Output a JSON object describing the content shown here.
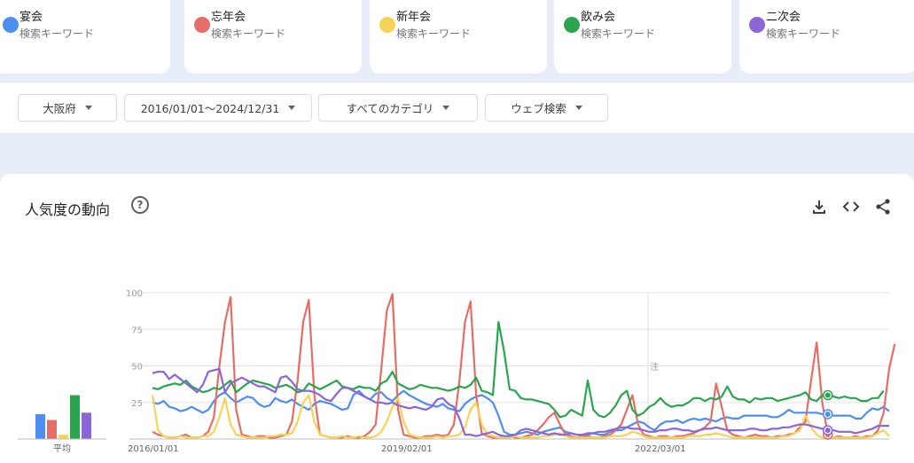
{
  "terms": [
    {
      "name": "宴会",
      "sub": "検索キーワード",
      "color": "#4e8ef3"
    },
    {
      "name": "忘年会",
      "sub": "検索キーワード",
      "color": "#e66d66"
    },
    {
      "name": "新年会",
      "sub": "検索キーワード",
      "color": "#f6d257"
    },
    {
      "name": "飲み会",
      "sub": "検索キーワード",
      "color": "#2aa44f"
    },
    {
      "name": "二次会",
      "sub": "検索キーワード",
      "color": "#8c65d6"
    }
  ],
  "filters": {
    "region": "大阪府",
    "period": "2016/01/01～2024/12/31",
    "category": "すべてのカテゴリ",
    "search_type": "ウェブ検索"
  },
  "panel": {
    "title": "人気度の動向",
    "help_icon": "help-circle-icon",
    "download_icon": "download-icon",
    "embed_icon": "embed-code-icon",
    "share_icon": "share-icon"
  },
  "chart_data": {
    "type": "line",
    "ylim": [
      0,
      100
    ],
    "y_ticks": [
      25,
      50,
      75,
      100
    ],
    "x_tick_labels": [
      "2016/01/01",
      "2019/02/01",
      "2022/03/01"
    ],
    "note_label": "注",
    "average_label": "平均",
    "averages": [
      {
        "name": "宴会",
        "value": 17
      },
      {
        "name": "忘年会",
        "value": 13
      },
      {
        "name": "新年会",
        "value": 3
      },
      {
        "name": "飲み会",
        "value": 30
      },
      {
        "name": "二次会",
        "value": 18
      }
    ],
    "series": [
      {
        "name": "宴会",
        "color": "#4e8ef3",
        "values": [
          25,
          24,
          26,
          22,
          21,
          19,
          20,
          22,
          20,
          18,
          20,
          26,
          30,
          32,
          28,
          25,
          27,
          29,
          28,
          24,
          22,
          23,
          28,
          26,
          25,
          27,
          24,
          22,
          20,
          24,
          26,
          25,
          24,
          22,
          20,
          21,
          30,
          33,
          29,
          27,
          31,
          32,
          28,
          26,
          30,
          33,
          30,
          28,
          26,
          24,
          23,
          22,
          24,
          21,
          20,
          19,
          24,
          27,
          29,
          30,
          28,
          25,
          16,
          5,
          3,
          3,
          4,
          5,
          4,
          3,
          5,
          6,
          7,
          8,
          5,
          4,
          3,
          3,
          3,
          4,
          3,
          3,
          5,
          6,
          6,
          8,
          10,
          12,
          11,
          8,
          6,
          10,
          12,
          12,
          13,
          11,
          13,
          14,
          13,
          14,
          13,
          12,
          14,
          15,
          14,
          14,
          16,
          16,
          16,
          16,
          16,
          15,
          15,
          17,
          20,
          18,
          18,
          18,
          18,
          18,
          17,
          17,
          16,
          16,
          16,
          16,
          14,
          14,
          18,
          21,
          20,
          22,
          19
        ]
      },
      {
        "name": "忘年会",
        "color": "#e66d66",
        "values": [
          5,
          3,
          2,
          1,
          1,
          2,
          3,
          1,
          1,
          2,
          5,
          15,
          50,
          80,
          97,
          20,
          3,
          2,
          1,
          2,
          2,
          1,
          1,
          2,
          3,
          12,
          40,
          80,
          95,
          30,
          3,
          2,
          1,
          1,
          1,
          2,
          1,
          1,
          2,
          5,
          10,
          48,
          88,
          99,
          20,
          3,
          2,
          1,
          1,
          2,
          2,
          3,
          2,
          3,
          10,
          40,
          80,
          94,
          30,
          4,
          2,
          1,
          1,
          2,
          2,
          1,
          1,
          2,
          3,
          6,
          10,
          15,
          18,
          10,
          3,
          2,
          1,
          2,
          2,
          1,
          1,
          2,
          3,
          6,
          10,
          20,
          30,
          10,
          3,
          2,
          1,
          2,
          2,
          1,
          2,
          2,
          3,
          4,
          6,
          8,
          12,
          38,
          22,
          6,
          3,
          2,
          1,
          2,
          3,
          2,
          2,
          1,
          2,
          2,
          3,
          4,
          8,
          12,
          40,
          66,
          25,
          3,
          1,
          2,
          1,
          1,
          2,
          1,
          2,
          2,
          6,
          18,
          48,
          65
        ]
      },
      {
        "name": "新年会",
        "color": "#f6d257",
        "values": [
          30,
          6,
          2,
          1,
          1,
          2,
          1,
          1,
          1,
          2,
          2,
          5,
          15,
          28,
          10,
          3,
          2,
          1,
          1,
          1,
          1,
          2,
          2,
          3,
          3,
          4,
          12,
          25,
          30,
          12,
          3,
          2,
          1,
          1,
          2,
          1,
          1,
          2,
          1,
          1,
          2,
          5,
          12,
          22,
          28,
          12,
          3,
          2,
          1,
          1,
          1,
          2,
          1,
          2,
          2,
          3,
          8,
          20,
          25,
          10,
          3,
          2,
          1,
          1,
          1,
          2,
          1,
          1,
          1,
          1,
          2,
          2,
          3,
          4,
          2,
          1,
          1,
          1,
          1,
          1,
          1,
          1,
          2,
          2,
          2,
          3,
          5,
          4,
          2,
          1,
          1,
          1,
          1,
          1,
          1,
          1,
          2,
          2,
          2,
          3,
          3,
          4,
          3,
          2,
          1,
          1,
          1,
          1,
          1,
          1,
          1,
          1,
          1,
          2,
          2,
          4,
          6,
          16,
          8,
          3,
          1,
          1,
          1,
          1,
          1,
          1,
          1,
          1,
          1,
          2,
          4,
          6,
          2
        ]
      },
      {
        "name": "飲み会",
        "color": "#2aa44f",
        "values": [
          35,
          34,
          36,
          37,
          38,
          37,
          40,
          36,
          34,
          32,
          33,
          35,
          34,
          37,
          40,
          32,
          35,
          38,
          40,
          39,
          38,
          37,
          35,
          36,
          37,
          35,
          32,
          33,
          38,
          36,
          34,
          36,
          38,
          40,
          36,
          35,
          34,
          36,
          35,
          35,
          33,
          38,
          40,
          46,
          38,
          36,
          34,
          35,
          37,
          36,
          35,
          35,
          34,
          33,
          34,
          36,
          35,
          37,
          42,
          33,
          32,
          30,
          80,
          60,
          34,
          33,
          28,
          27,
          27,
          26,
          25,
          24,
          20,
          15,
          16,
          20,
          18,
          16,
          40,
          20,
          16,
          15,
          18,
          23,
          30,
          33,
          20,
          16,
          18,
          22,
          24,
          28,
          24,
          22,
          23,
          23,
          25,
          28,
          28,
          26,
          28,
          27,
          29,
          36,
          29,
          27,
          27,
          25,
          28,
          27,
          28,
          28,
          26,
          27,
          28,
          29,
          30,
          32,
          27,
          26,
          30,
          30,
          29,
          28,
          29,
          28,
          28,
          26,
          26,
          28,
          28,
          33
        ]
      },
      {
        "name": "二次会",
        "color": "#8c65d6",
        "values": [
          45,
          46,
          46,
          41,
          44,
          41,
          38,
          35,
          32,
          37,
          46,
          47,
          48,
          32,
          38,
          40,
          42,
          40,
          38,
          36,
          36,
          34,
          32,
          42,
          43,
          39,
          34,
          33,
          33,
          32,
          30,
          27,
          26,
          31,
          35,
          35,
          33,
          31,
          29,
          27,
          25,
          25,
          24,
          25,
          23,
          22,
          21,
          22,
          21,
          20,
          22,
          27,
          28,
          24,
          22,
          14,
          3,
          3,
          2,
          3,
          4,
          5,
          3,
          2,
          2,
          3,
          6,
          7,
          6,
          5,
          4,
          3,
          4,
          3,
          3,
          4,
          3,
          3,
          4,
          4,
          5,
          5,
          6,
          7,
          8,
          8,
          7,
          7,
          6,
          5,
          5,
          6,
          6,
          7,
          7,
          6,
          6,
          5,
          6,
          7,
          7,
          8,
          7,
          6,
          6,
          6,
          6,
          7,
          7,
          6,
          6,
          7,
          7,
          8,
          8,
          9,
          10,
          10,
          9,
          8,
          7,
          6,
          6,
          5,
          5,
          5,
          4,
          5,
          6,
          7,
          9,
          9,
          9
        ]
      }
    ]
  }
}
